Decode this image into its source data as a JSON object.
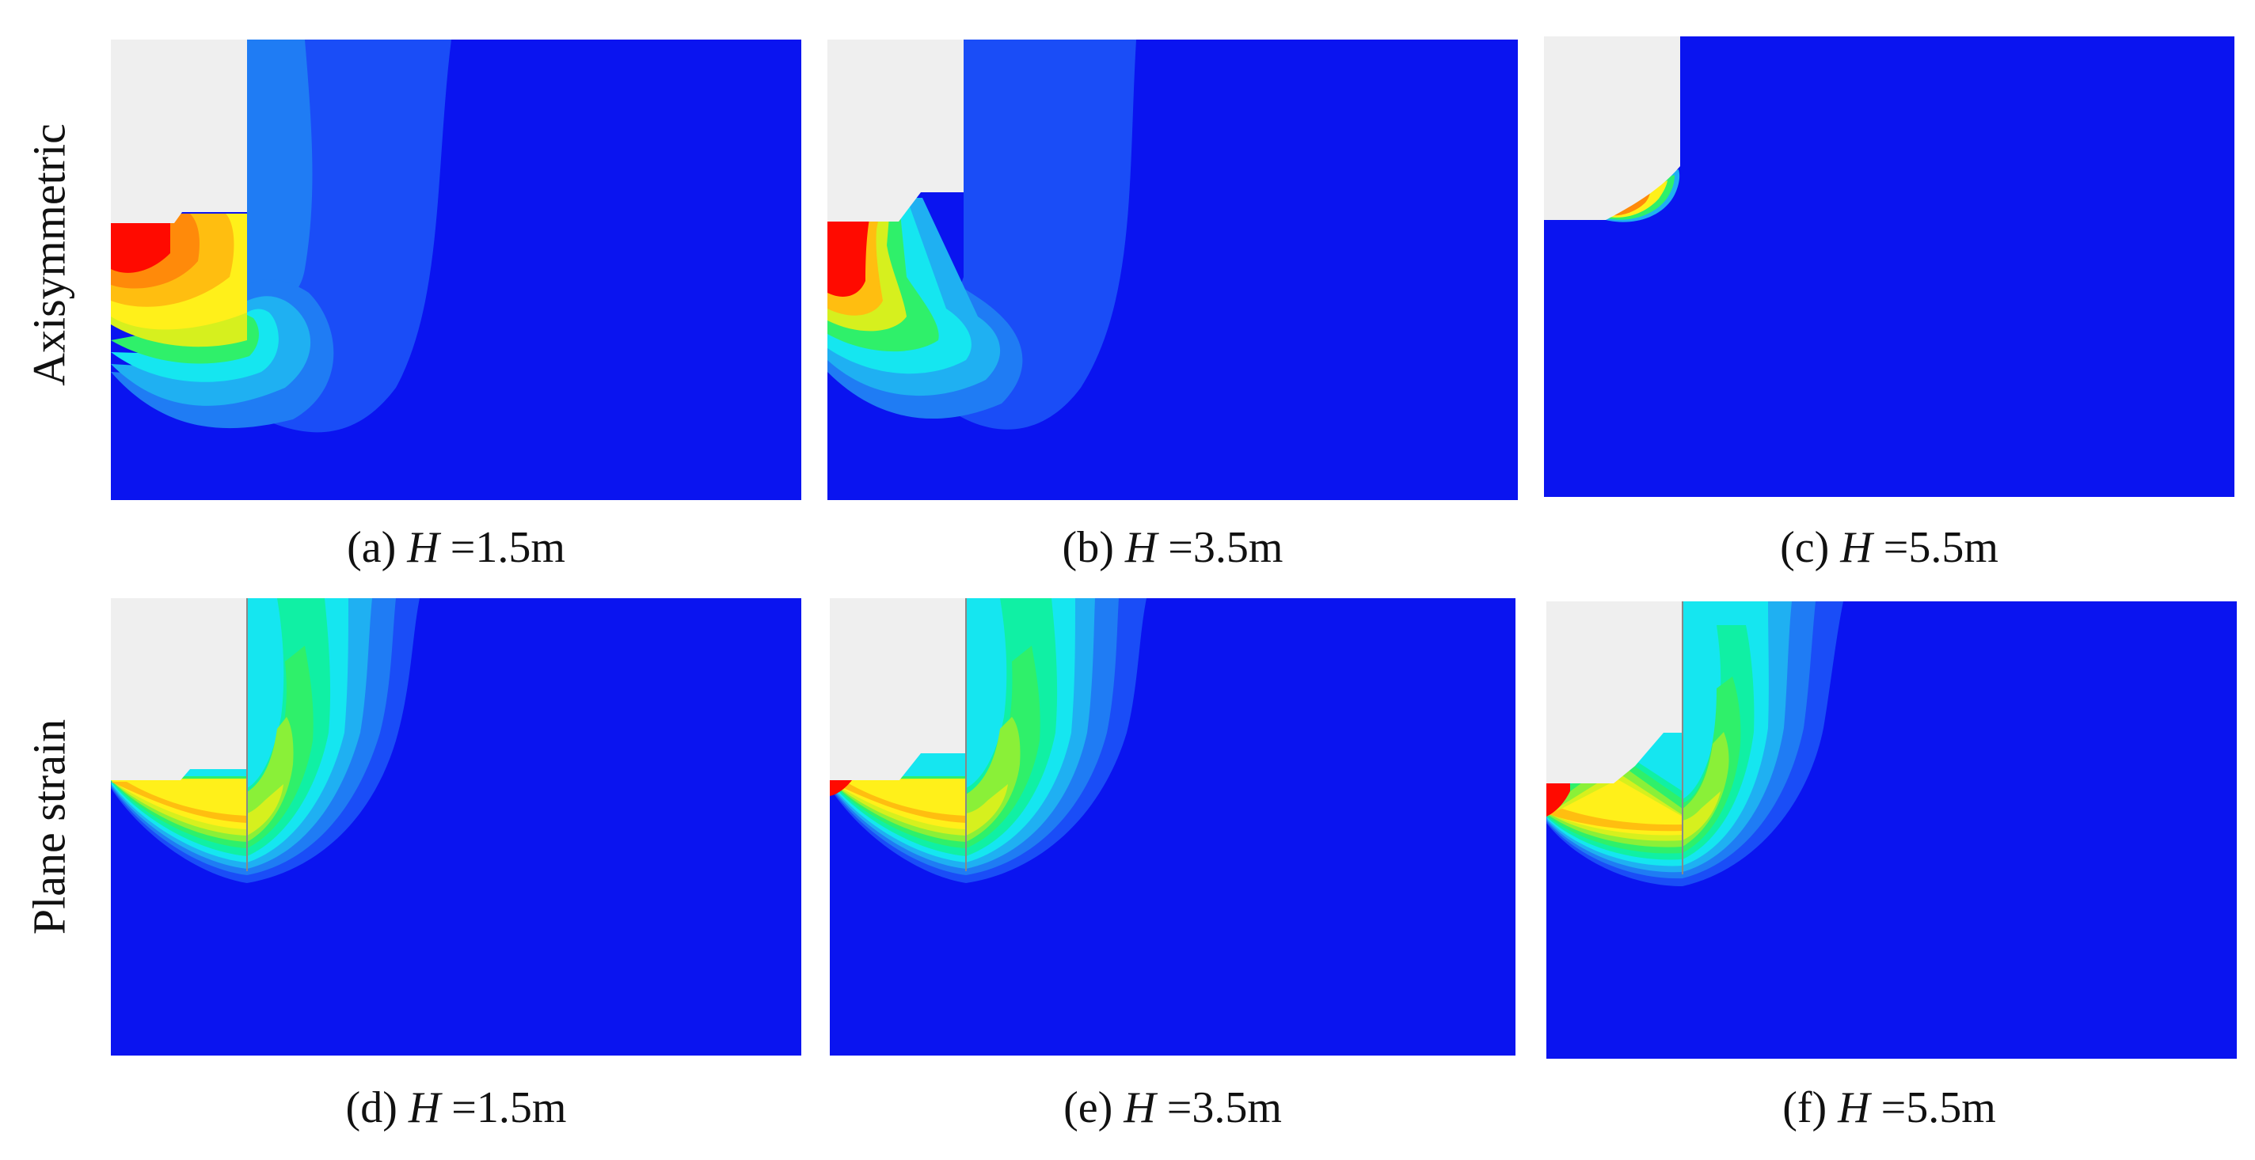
{
  "row_labels": [
    "Axisymmetric",
    "Plane strain"
  ],
  "colors": {
    "background": "#0a14f0",
    "void": "#efefef",
    "scale": [
      "#0a14f0",
      "#1a4df7",
      "#1f7cf4",
      "#1fb0f2",
      "#15e6f0",
      "#10f0a4",
      "#2ff06a",
      "#8af038",
      "#d6f01e",
      "#fff01a",
      "#ffbe10",
      "#ff8a0a",
      "#ff4a06",
      "#ff0a00"
    ]
  },
  "panels": [
    {
      "id": "a",
      "prefix": "(a) ",
      "var": "H",
      "rest": " =1.5m"
    },
    {
      "id": "b",
      "prefix": "(b) ",
      "var": "H",
      "rest": " =3.5m"
    },
    {
      "id": "c",
      "prefix": "(c) ",
      "var": "H",
      "rest": " =5.5m"
    },
    {
      "id": "d",
      "prefix": "(d) ",
      "var": "H",
      "rest": " =1.5m"
    },
    {
      "id": "e",
      "prefix": "(e) ",
      "var": "H",
      "rest": " =3.5m"
    },
    {
      "id": "f",
      "prefix": "(f) ",
      "var": "H",
      "rest": " =5.5m"
    }
  ]
}
